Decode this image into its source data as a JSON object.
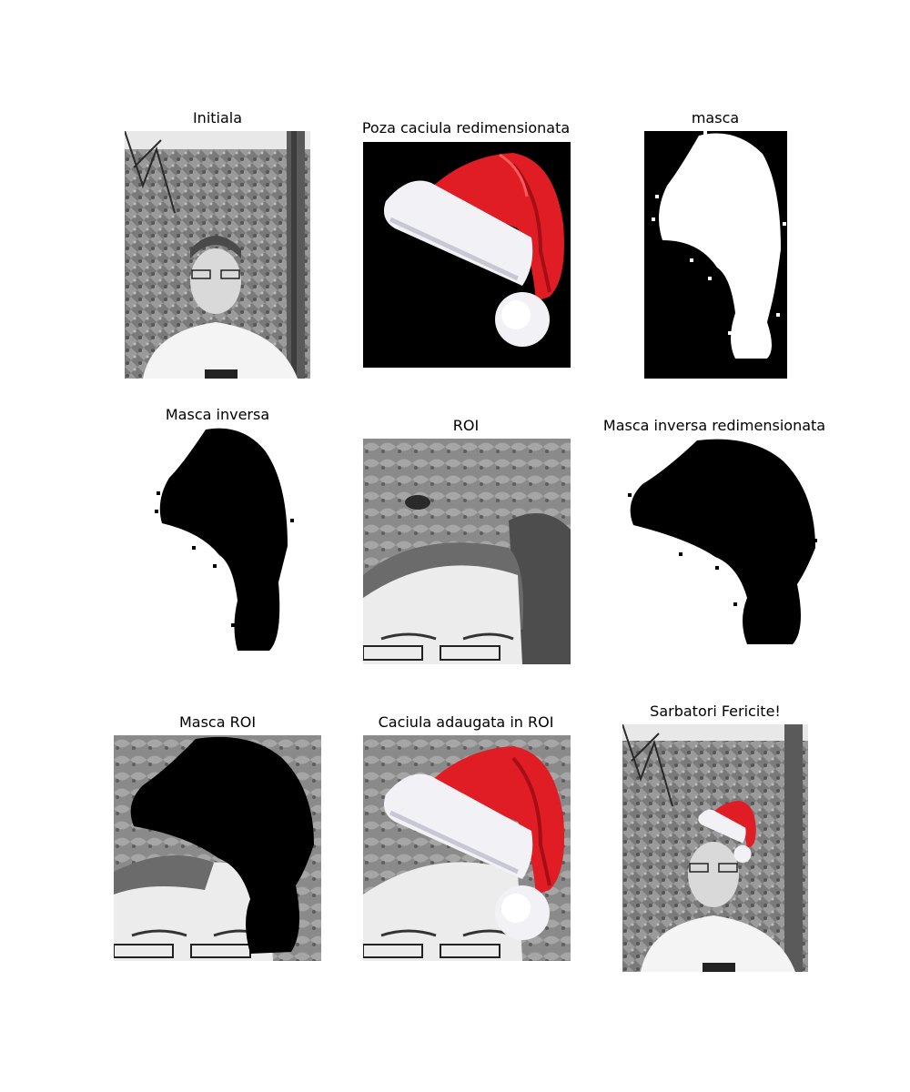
{
  "figure": {
    "panels": [
      {
        "title": "Initiala"
      },
      {
        "title": "Poza caciula redimensionata"
      },
      {
        "title": "masca"
      },
      {
        "title": "Masca inversa"
      },
      {
        "title": "ROI"
      },
      {
        "title": "Masca inversa redimensionata"
      },
      {
        "title": "Masca ROI"
      },
      {
        "title": "Caciula adaugata in ROI"
      },
      {
        "title": "Sarbatori Fericite!"
      }
    ]
  },
  "colors": {
    "hat_red": "#e01c24",
    "hat_white": "#f2f2f6",
    "mask_black": "#000000",
    "mask_white": "#ffffff",
    "photo_gray": "#8a8a8a"
  }
}
